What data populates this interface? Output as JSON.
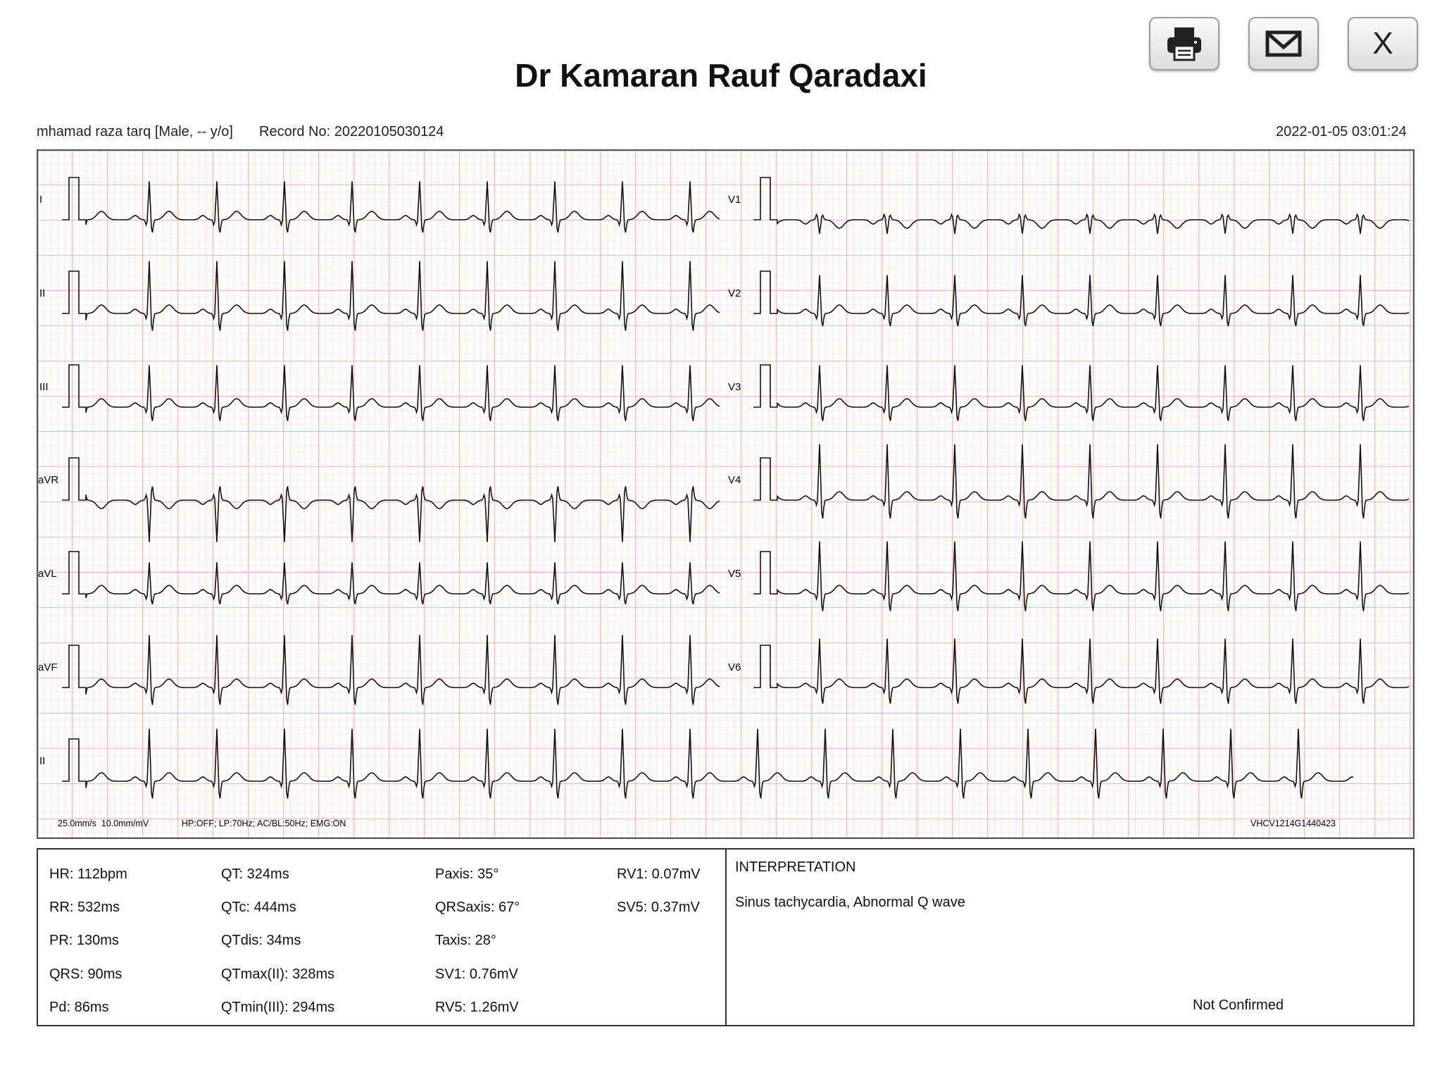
{
  "header": {
    "title": "Dr Kamaran Rauf Qaradaxi",
    "patient": "mhamad raza tarq [Male, -- y/o]",
    "record": "Record No: 20220105030124",
    "datetime": "2022-01-05 03:01:24"
  },
  "toolbar": {
    "print_icon": "printer-icon",
    "email_icon": "envelope-icon",
    "close_label": "X"
  },
  "ecg": {
    "left_leads": [
      "I",
      "II",
      "III",
      "aVR",
      "aVL",
      "aVF"
    ],
    "right_leads": [
      "V1",
      "V2",
      "V3",
      "V4",
      "V5",
      "V6"
    ],
    "rhythm_lead": "II",
    "settings_left": "25.0mm/s  10.0mm/mV",
    "settings_filters": "HP:OFF; LP:70Hz; AC/BL:50Hz; EMG:ON",
    "device_id": "VHCV1214G1440423",
    "grid_color": "#f4a0a0",
    "trace_color": "#111111"
  },
  "measurements": [
    [
      "HR: 112bpm",
      "QT: 324ms",
      "Paxis: 35°",
      "RV1: 0.07mV"
    ],
    [
      "RR: 532ms",
      "QTc: 444ms",
      "QRSaxis: 67°",
      "SV5: 0.37mV"
    ],
    [
      "PR: 130ms",
      "QTdis: 34ms",
      "Taxis: 28°",
      ""
    ],
    [
      "QRS: 90ms",
      "QTmax(II): 328ms",
      "SV1: 0.76mV",
      ""
    ],
    [
      "Pd: 86ms",
      "QTmin(III): 294ms",
      "RV5: 1.26mV",
      ""
    ]
  ],
  "interpretation": {
    "heading": "INTERPRETATION",
    "text": "Sinus tachycardia, Abnormal Q wave",
    "status": "Not Confirmed"
  }
}
